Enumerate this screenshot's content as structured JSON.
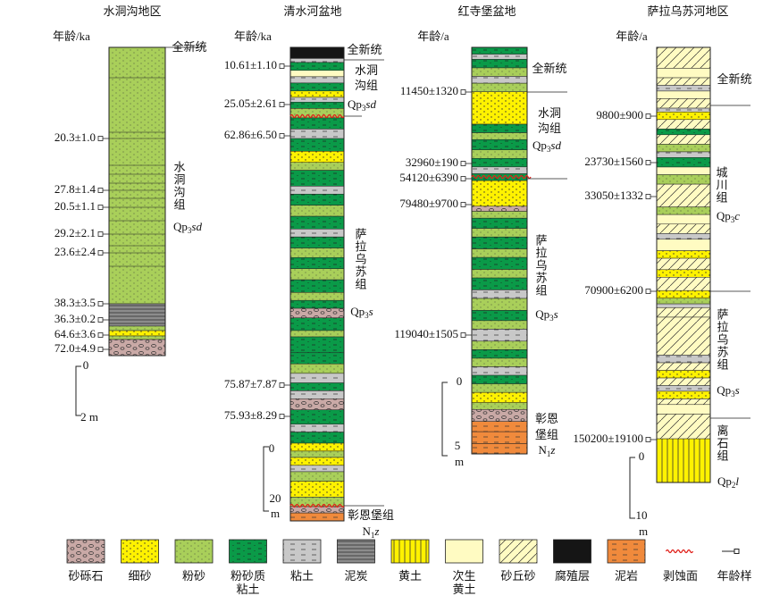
{
  "columns": [
    {
      "title": "水洞沟地区",
      "age_label": "年龄/ka",
      "ages": [
        "20.3±1.0",
        "27.8±1.4",
        "20.5±1.1",
        "29.2±2.1",
        "23.6±2.4",
        "38.3±3.5",
        "36.3±0.2",
        "64.6±3.6",
        "72.0±4.9"
      ],
      "labels": [
        {
          "text": "全新统"
        },
        {
          "text": "水洞沟组"
        },
        {
          "code": {
            "base": "Qp",
            "sub": "3",
            "italic": "sd"
          }
        }
      ],
      "scale": [
        "0",
        "2 m"
      ]
    },
    {
      "title": "清水河盆地",
      "age_label": "年龄/ka",
      "ages": [
        "10.61±1.10",
        "25.05±2.61",
        "62.86±6.50",
        "75.87±7.87",
        "75.93±8.29"
      ],
      "labels": [
        {
          "text": "全新统"
        },
        {
          "text": "水洞"
        },
        {
          "text": "沟组"
        },
        {
          "code": {
            "base": "Qp",
            "sub": "3",
            "italic": "sd"
          }
        },
        {
          "text": "萨拉乌苏组"
        },
        {
          "code": {
            "base": "Qp",
            "sub": "3",
            "italic": "s"
          }
        },
        {
          "text": "彰恩堡组"
        },
        {
          "code": {
            "base": "N",
            "sub": "1",
            "italic": "z"
          }
        }
      ],
      "scale": [
        "0",
        "20",
        "m"
      ]
    },
    {
      "title": "红寺堡盆地",
      "age_label": "年龄/a",
      "ages": [
        "11450±1320",
        "32960±190",
        "54120±6390",
        "79480±9700",
        "119040±1505"
      ],
      "labels": [
        {
          "text": "全新统"
        },
        {
          "text": "水洞"
        },
        {
          "text": "沟组"
        },
        {
          "code": {
            "base": "Qp",
            "sub": "3",
            "italic": "sd"
          }
        },
        {
          "text": "萨拉乌苏组"
        },
        {
          "code": {
            "base": "Qp",
            "sub": "3",
            "italic": "s"
          }
        },
        {
          "text": "彰恩"
        },
        {
          "text": "堡组"
        },
        {
          "code": {
            "base": "N",
            "sub": "1",
            "italic": "z"
          }
        }
      ],
      "scale": [
        "0",
        "5",
        "m"
      ]
    },
    {
      "title": "萨拉乌苏河地区",
      "age_label": "年龄/a",
      "ages": [
        "9800±900",
        "23730±1560",
        "33050±1332",
        "70900±6200",
        "150200±19100"
      ],
      "labels": [
        {
          "text": "全新统"
        },
        {
          "text": "城川组"
        },
        {
          "code": {
            "base": "Qp",
            "sub": "3",
            "italic": "c"
          }
        },
        {
          "text": "萨拉乌苏组"
        },
        {
          "code": {
            "base": "Qp",
            "sub": "3",
            "italic": "s"
          }
        },
        {
          "text": "离石组"
        },
        {
          "code": {
            "base": "Qp",
            "sub": "2",
            "italic": "l"
          }
        }
      ],
      "scale": [
        "0",
        "10",
        "m"
      ]
    }
  ],
  "legend": [
    {
      "lines": [
        "砂砾石"
      ]
    },
    {
      "lines": [
        "细砂"
      ]
    },
    {
      "lines": [
        "粉砂"
      ]
    },
    {
      "lines": [
        "粉砂质",
        "粘土"
      ]
    },
    {
      "lines": [
        "粘土"
      ]
    },
    {
      "lines": [
        "泥炭"
      ]
    },
    {
      "lines": [
        "黄土"
      ]
    },
    {
      "lines": [
        "次生",
        "黄土"
      ]
    },
    {
      "lines": [
        "砂丘砂"
      ]
    },
    {
      "lines": [
        "腐殖层"
      ]
    },
    {
      "lines": [
        "泥岩"
      ]
    },
    {
      "lines": [
        "剥蚀面"
      ]
    },
    {
      "lines": [
        "年龄样"
      ]
    }
  ]
}
